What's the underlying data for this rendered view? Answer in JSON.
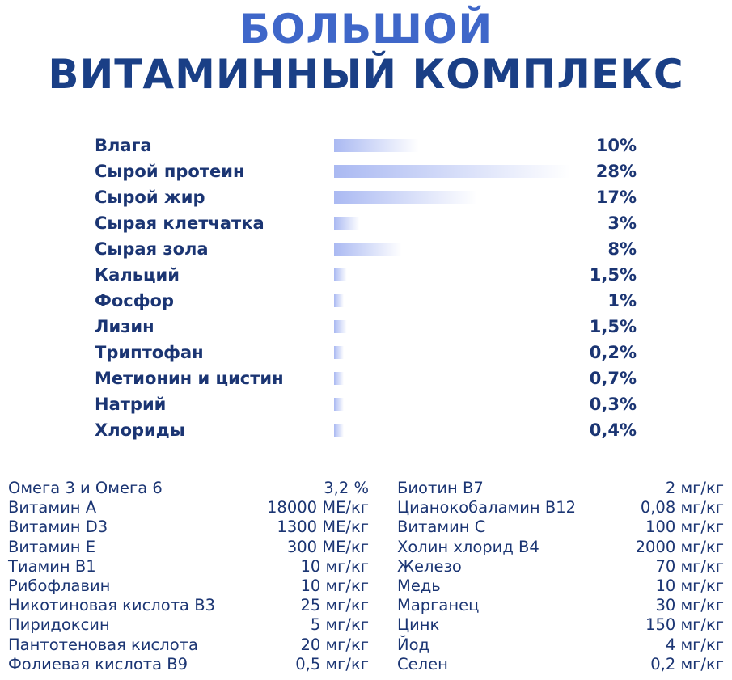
{
  "title": {
    "line1": "БОЛЬШОЙ",
    "line2": "ВИТАМИННЫЙ КОМПЛЕКС"
  },
  "colors": {
    "title_line1": "#3f67c9",
    "title_line2": "#1a3f86",
    "text": "#1b3573",
    "bar_start": "#aab9f2",
    "bar_end": "#ffffff"
  },
  "chart_data": {
    "type": "bar",
    "orientation": "horizontal",
    "categories": [
      "Влага",
      "Сырой протеин",
      "Сырой жир",
      "Сырая клетчатка",
      "Сырая зола",
      "Кальций",
      "Фосфор",
      "Лизин",
      "Триптофан",
      "Метионин и цистин",
      "Натрий",
      "Хлориды"
    ],
    "values": [
      10,
      28,
      17,
      3,
      8,
      1.5,
      1,
      1.5,
      0.2,
      0.7,
      0.3,
      0.4
    ],
    "value_labels": [
      "10%",
      "28%",
      "17%",
      "3%",
      "8%",
      "1,5%",
      "1%",
      "1,5%",
      "0,2%",
      "0,7%",
      "0,3%",
      "0,4%"
    ],
    "xlim": [
      0,
      28
    ],
    "grid": false,
    "legend": "none"
  },
  "vitamins_left": [
    {
      "name": "Омега 3 и Омега 6",
      "value": "3,2 %"
    },
    {
      "name": "Витамин А",
      "value": "18000 МЕ/кг"
    },
    {
      "name": "Витамин D3",
      "value": "1300 МЕ/кг"
    },
    {
      "name": "Витамин Е",
      "value": "300 МЕ/кг"
    },
    {
      "name": "Тиамин В1",
      "value": "10 мг/кг"
    },
    {
      "name": "Рибофлавин",
      "value": "10 мг/кг"
    },
    {
      "name": "Никотиновая кислота В3",
      "value": "25 мг/кг"
    },
    {
      "name": "Пиридоксин",
      "value": "5 мг/кг"
    },
    {
      "name": "Пантотеновая кислота",
      "value": "20 мг/кг"
    },
    {
      "name": "Фолиевая кислота В9",
      "value": "0,5 мг/кг"
    }
  ],
  "vitamins_right": [
    {
      "name": "Биотин В7",
      "value": "2 мг/кг"
    },
    {
      "name": "Цианокобаламин В12",
      "value": "0,08 мг/кг"
    },
    {
      "name": "Витамин С",
      "value": "100 мг/кг"
    },
    {
      "name": "Холин хлорид В4",
      "value": "2000 мг/кг"
    },
    {
      "name": "Железо",
      "value": "70 мг/кг"
    },
    {
      "name": "Медь",
      "value": "10 мг/кг"
    },
    {
      "name": "Марганец",
      "value": "30 мг/кг"
    },
    {
      "name": "Цинк",
      "value": "150 мг/кг"
    },
    {
      "name": "Йод",
      "value": "4 мг/кг"
    },
    {
      "name": "Селен",
      "value": "0,2 мг/кг"
    }
  ]
}
